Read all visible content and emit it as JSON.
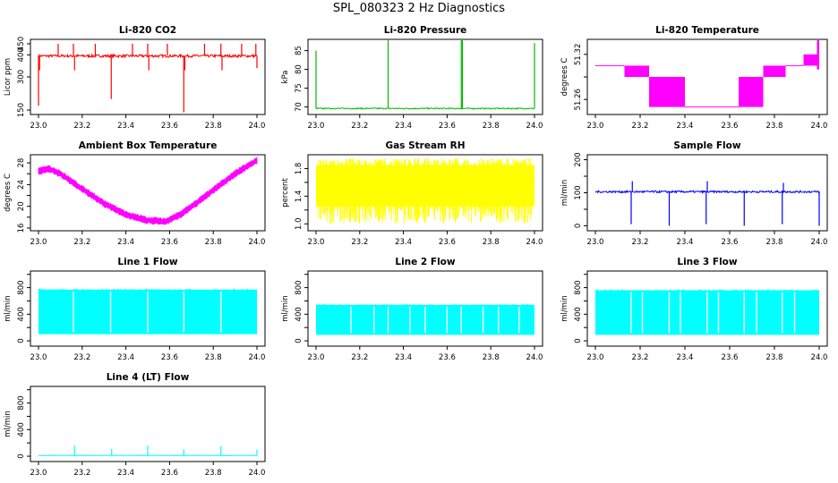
{
  "title": "SPL_080323  2 Hz Diagnostics",
  "colors": {
    "red": "#ff0000",
    "green": "#00bb00",
    "magenta": "#ff00ff",
    "yellow": "#ffff00",
    "blue": "#0000ff",
    "cyan": "#00ffff"
  },
  "chart_data": [
    {
      "id": "co2",
      "type": "line",
      "title": "Li-820 CO2",
      "ylabel": "Licor ppm",
      "color": "#ff0000",
      "xlim": [
        23.0,
        24.0
      ],
      "ylim": [
        130,
        470
      ],
      "yticks": [
        150,
        300,
        400,
        450
      ],
      "xticks": [
        "23.0",
        "23.2",
        "23.4",
        "23.6",
        "23.8",
        "24.0"
      ],
      "baseline": 395,
      "noise": 6,
      "spikes": [
        [
          23.0,
          170
        ],
        [
          23.005,
          330
        ],
        [
          23.09,
          450
        ],
        [
          23.16,
          450
        ],
        [
          23.165,
          330
        ],
        [
          23.26,
          450
        ],
        [
          23.333,
          200
        ],
        [
          23.43,
          450
        ],
        [
          23.5,
          450
        ],
        [
          23.505,
          330
        ],
        [
          23.59,
          450
        ],
        [
          23.665,
          140
        ],
        [
          23.67,
          330
        ],
        [
          23.76,
          450
        ],
        [
          23.835,
          450
        ],
        [
          23.84,
          330
        ],
        [
          23.93,
          450
        ],
        [
          23.995,
          450
        ],
        [
          24.0,
          340
        ]
      ]
    },
    {
      "id": "pressure",
      "type": "line",
      "title": "Li-820 Pressure",
      "ylabel": "kPa",
      "color": "#00bb00",
      "xlim": [
        23.0,
        24.0
      ],
      "ylim": [
        68,
        88
      ],
      "yticks": [
        70,
        75,
        80,
        85
      ],
      "xticks": [
        "23.0",
        "23.2",
        "23.4",
        "23.6",
        "23.8",
        "24.0"
      ],
      "baseline": 69.6,
      "noise": 0.15,
      "spikes": [
        [
          23.0,
          85
        ],
        [
          23.33,
          88
        ],
        [
          23.665,
          88
        ],
        [
          23.67,
          88
        ],
        [
          24.0,
          87
        ]
      ]
    },
    {
      "id": "temp",
      "type": "line",
      "title": "Li-820 Temperature",
      "ylabel": "degrees C",
      "color": "#ff00ff",
      "xlim": [
        23.0,
        24.0
      ],
      "ylim": [
        51.24,
        51.34
      ],
      "yticks": [
        51.26,
        51.29,
        51.32
      ],
      "ytick_labels": [
        "51.26",
        "",
        "51.32"
      ],
      "xticks": [
        "23.0",
        "23.2",
        "23.4",
        "23.6",
        "23.8",
        "24.0"
      ],
      "segments": [
        [
          23.0,
          23.13,
          51.305,
          51.305
        ],
        [
          23.13,
          23.24,
          51.29,
          51.305
        ],
        [
          23.24,
          23.4,
          51.25,
          51.29
        ],
        [
          23.4,
          23.64,
          51.25,
          51.25
        ],
        [
          23.64,
          23.75,
          51.25,
          51.29
        ],
        [
          23.75,
          23.85,
          51.29,
          51.305
        ],
        [
          23.85,
          23.93,
          51.305,
          51.305
        ],
        [
          23.93,
          23.99,
          51.305,
          51.32
        ],
        [
          23.99,
          24.0,
          51.3,
          51.34
        ]
      ]
    },
    {
      "id": "ambient",
      "type": "line",
      "title": "Ambient Box Temperature",
      "ylabel": "degrees C",
      "color": "#ff00ff",
      "xlim": [
        23.0,
        24.0
      ],
      "ylim": [
        15.5,
        29.5
      ],
      "yticks": [
        16,
        18,
        20,
        22,
        24,
        26,
        28
      ],
      "ytick_labels": [
        "16",
        "",
        "20",
        "",
        "24",
        "",
        "28"
      ],
      "xticks": [
        "23.0",
        "23.2",
        "23.4",
        "23.6",
        "23.8",
        "24.0"
      ],
      "points": [
        [
          23.0,
          26.5
        ],
        [
          23.05,
          26.9
        ],
        [
          23.1,
          26
        ],
        [
          23.2,
          23.2
        ],
        [
          23.3,
          20.5
        ],
        [
          23.4,
          18.5
        ],
        [
          23.5,
          17.4
        ],
        [
          23.58,
          17.2
        ],
        [
          23.65,
          18.5
        ],
        [
          23.72,
          20.5
        ],
        [
          23.8,
          23
        ],
        [
          23.9,
          26
        ],
        [
          24.0,
          28.5
        ]
      ],
      "band": 0.6
    },
    {
      "id": "rh",
      "type": "band",
      "title": "Gas Stream RH",
      "ylabel": "percent",
      "color": "#ffff00",
      "xlim": [
        23.0,
        24.0
      ],
      "ylim": [
        0.9,
        2.0
      ],
      "yticks": [
        1.0,
        1.2,
        1.4,
        1.6,
        1.8
      ],
      "ytick_labels": [
        "1.0",
        "",
        "1.4",
        "",
        "1.8"
      ],
      "xticks": [
        "23.0",
        "23.2",
        "23.4",
        "23.6",
        "23.8",
        "24.0"
      ],
      "low": 1.0,
      "high": 1.95,
      "core_low": 1.25,
      "core_high": 1.85
    },
    {
      "id": "sample",
      "type": "line",
      "title": "Sample Flow",
      "ylabel": "ml/min",
      "color": "#0000ff",
      "xlim": [
        23.0,
        24.0
      ],
      "ylim": [
        -15,
        215
      ],
      "yticks": [
        0,
        50,
        100,
        150,
        200
      ],
      "ytick_labels": [
        "0",
        "",
        "100",
        "",
        "200"
      ],
      "xticks": [
        "23.0",
        "23.2",
        "23.4",
        "23.6",
        "23.8",
        "24.0"
      ],
      "baseline": 103,
      "noise": 3,
      "spikes": [
        [
          23.16,
          5
        ],
        [
          23.33,
          0
        ],
        [
          23.495,
          5
        ],
        [
          23.665,
          0
        ],
        [
          23.835,
          5
        ],
        [
          24.0,
          0
        ],
        [
          23.165,
          135
        ],
        [
          23.5,
          135
        ],
        [
          23.84,
          130
        ]
      ]
    },
    {
      "id": "line1",
      "type": "band",
      "title": "Line 1 Flow",
      "ylabel": "ml/min",
      "color": "#00ffff",
      "xlim": [
        23.0,
        24.0
      ],
      "ylim": [
        -80,
        1050
      ],
      "yticks": [
        0,
        200,
        400,
        600,
        800,
        1000
      ],
      "ytick_labels": [
        "0",
        "",
        "400",
        "",
        "800",
        ""
      ],
      "xticks": [
        "23.0",
        "23.2",
        "23.4",
        "23.6",
        "23.8",
        "24.0"
      ],
      "low": 100,
      "high": 770,
      "gaps": [
        23.16,
        23.33,
        23.5,
        23.665,
        23.835
      ]
    },
    {
      "id": "line2",
      "type": "band",
      "title": "Line 2 Flow",
      "ylabel": "ml/min",
      "color": "#00ffff",
      "xlim": [
        23.0,
        24.0
      ],
      "ylim": [
        -80,
        1050
      ],
      "yticks": [
        0,
        200,
        400,
        600,
        800,
        1000
      ],
      "ytick_labels": [
        "0",
        "",
        "400",
        "",
        "800",
        ""
      ],
      "xticks": [
        "23.0",
        "23.2",
        "23.4",
        "23.6",
        "23.8",
        "24.0"
      ],
      "low": 90,
      "high": 540,
      "gaps": [
        23.16,
        23.265,
        23.33,
        23.43,
        23.5,
        23.6,
        23.665,
        23.765,
        23.835,
        23.93
      ]
    },
    {
      "id": "line3",
      "type": "band",
      "title": "Line 3 Flow",
      "ylabel": "ml/min",
      "color": "#00ffff",
      "xlim": [
        23.0,
        24.0
      ],
      "ylim": [
        -80,
        1050
      ],
      "yticks": [
        0,
        200,
        400,
        600,
        800,
        1000
      ],
      "ytick_labels": [
        "0",
        "",
        "400",
        "",
        "800",
        ""
      ],
      "xticks": [
        "23.0",
        "23.2",
        "23.4",
        "23.6",
        "23.8",
        "24.0"
      ],
      "low": 90,
      "high": 760,
      "gaps": [
        23.16,
        23.21,
        23.33,
        23.38,
        23.5,
        23.55,
        23.665,
        23.72,
        23.835,
        23.89
      ]
    },
    {
      "id": "line4",
      "type": "line",
      "title": "Line 4 (LT) Flow",
      "ylabel": "ml/min",
      "color": "#00ffff",
      "xlim": [
        23.0,
        24.0
      ],
      "ylim": [
        -80,
        1050
      ],
      "yticks": [
        0,
        200,
        400,
        600,
        800,
        1000
      ],
      "ytick_labels": [
        "0",
        "",
        "400",
        "",
        "800",
        ""
      ],
      "xticks": [
        "23.0",
        "23.2",
        "23.4",
        "23.6",
        "23.8",
        "24.0"
      ],
      "baseline": 10,
      "noise": 3,
      "spikes": [
        [
          23.165,
          160
        ],
        [
          23.335,
          110
        ],
        [
          23.5,
          160
        ],
        [
          23.665,
          100
        ],
        [
          23.835,
          150
        ],
        [
          24.0,
          100
        ]
      ]
    }
  ]
}
